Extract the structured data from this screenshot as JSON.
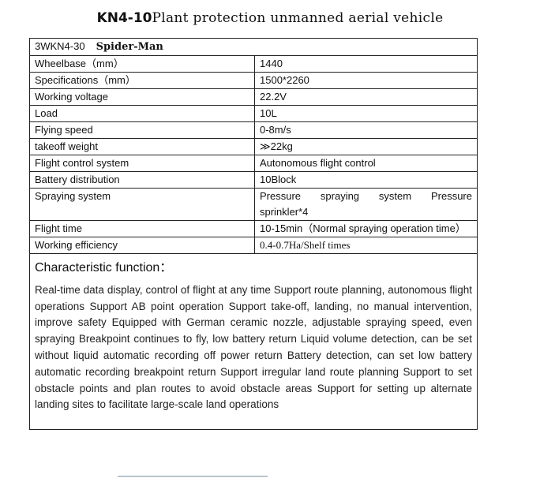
{
  "title": {
    "model": "KN4-10",
    "text": "Plant protection unmanned aerial vehicle"
  },
  "table": {
    "header": {
      "code": "3WKN4-30",
      "name": "Spider-Man"
    },
    "rows": [
      {
        "label": "Wheelbase（mm）",
        "value": "1440"
      },
      {
        "label": "Specifications（mm）",
        "value": "1500*2260"
      },
      {
        "label": "Working voltage",
        "value": "22.2V"
      },
      {
        "label": "Load",
        "value": "10L"
      },
      {
        "label": "Flying speed",
        "value": "0-8m/s"
      },
      {
        "label": "takeoff weight",
        "value": "≫22kg"
      },
      {
        "label": "Flight control system",
        "value": "Autonomous flight control"
      },
      {
        "label": "Battery distribution",
        "value": "10Block"
      },
      {
        "label": "Spraying system",
        "value": "Pressure spraying system Pressure sprinkler*4"
      },
      {
        "label": "Flight time",
        "value": "10-15min（Normal spraying operation time）"
      },
      {
        "label": "Working efficiency",
        "value": "0.4-0.7Ha/Shelf times"
      }
    ]
  },
  "characteristic": {
    "title": "Characteristic function：",
    "body": "Real-time data display, control of flight at any time Support route planning, autonomous flight operations Support AB point operation Support take-off, landing, no manual intervention, improve safety Equipped with German ceramic nozzle, adjustable spraying speed, even spraying Breakpoint continues to fly, low battery return Liquid volume detection, can be set without liquid automatic recording off power return Battery detection, can set low battery automatic recording breakpoint return Support irregular land route planning Support to set obstacle points and plan routes to avoid obstacle areas Support for setting up alternate landing sites to facilitate large-scale land operations"
  }
}
